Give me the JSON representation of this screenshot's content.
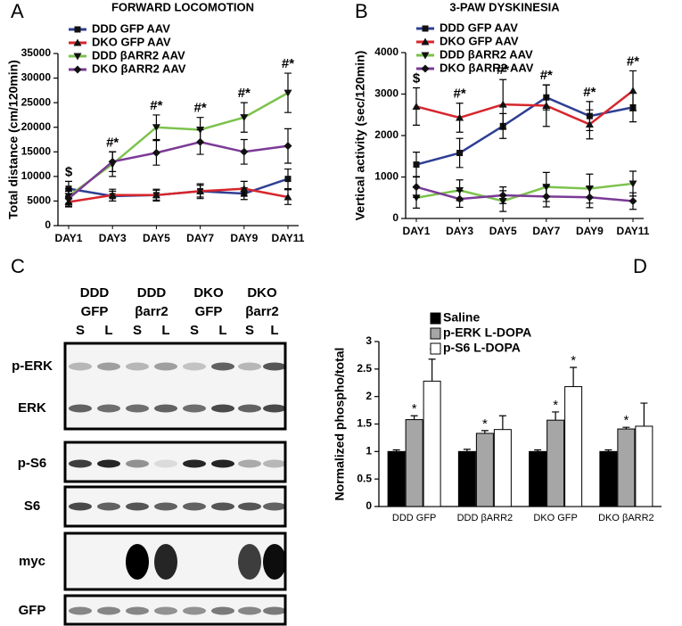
{
  "chart_data": [
    {
      "type": "line",
      "panel_label": "A",
      "title": "FORWARD LOCOMOTION",
      "y_label": "Total distance (cm/120min)",
      "categories": [
        "DAY1",
        "DAY3",
        "DAY5",
        "DAY7",
        "DAY9",
        "DAY11"
      ],
      "ylim": [
        0,
        35000
      ],
      "yticks": [
        0,
        5000,
        10000,
        15000,
        20000,
        25000,
        30000,
        35000
      ],
      "annotations": [
        "$",
        "#*",
        "#*",
        "#*",
        "#*",
        "#*"
      ],
      "series": [
        {
          "name": "DDD GFP AAV",
          "color": "#2e3f93",
          "marker": "square",
          "values": [
            7500,
            6000,
            6200,
            7000,
            6500,
            9500
          ],
          "errors": [
            1500,
            1000,
            1000,
            1200,
            1200,
            2000
          ]
        },
        {
          "name": "DKO GFP AAV",
          "color": "#d7262d",
          "marker": "triangle",
          "values": [
            4800,
            6200,
            6200,
            7000,
            7500,
            5800
          ],
          "errors": [
            1000,
            1200,
            1200,
            1500,
            1500,
            1500
          ]
        },
        {
          "name": "DDD βARR2 AAV",
          "color": "#7cc24d",
          "marker": "triangle-down",
          "values": [
            6000,
            12500,
            20000,
            19500,
            22000,
            27000
          ],
          "errors": [
            1500,
            2500,
            2500,
            2500,
            3000,
            4000
          ]
        },
        {
          "name": "DKO βARR2 AAV",
          "color": "#7b3a96",
          "marker": "diamond",
          "values": [
            5500,
            13000,
            14800,
            17000,
            15000,
            16200
          ],
          "errors": [
            1500,
            2000,
            2500,
            2500,
            2500,
            3500
          ]
        }
      ]
    },
    {
      "type": "line",
      "panel_label": "B",
      "title": "3-PAW DYSKINESIA",
      "y_label": "Vertical activity (sec/120min)",
      "categories": [
        "DAY1",
        "DAY3",
        "DAY5",
        "DAY7",
        "DAY9",
        "DAY11"
      ],
      "ylim": [
        0,
        4000
      ],
      "yticks": [
        0,
        1000,
        2000,
        3000,
        4000
      ],
      "annotations": [
        "$",
        "#*",
        "#*",
        "#*",
        "#*",
        "#*"
      ],
      "series": [
        {
          "name": "DDD GFP AAV",
          "color": "#2e3f93",
          "marker": "square",
          "values": [
            1300,
            1580,
            2230,
            2920,
            2470,
            2680
          ],
          "errors": [
            300,
            350,
            300,
            300,
            350,
            350
          ]
        },
        {
          "name": "DKO GFP AAV",
          "color": "#d7262d",
          "marker": "triangle",
          "values": [
            2700,
            2430,
            2750,
            2720,
            2270,
            3080
          ],
          "errors": [
            450,
            350,
            600,
            500,
            350,
            480
          ]
        },
        {
          "name": "DDD βARR2 AAV",
          "color": "#7cc24d",
          "marker": "triangle-down",
          "values": [
            500,
            680,
            420,
            760,
            720,
            840
          ],
          "errors": [
            250,
            250,
            250,
            350,
            350,
            300
          ]
        },
        {
          "name": "DKO βARR2 AAV",
          "color": "#7b3a96",
          "marker": "diamond",
          "values": [
            760,
            470,
            560,
            530,
            510,
            420
          ],
          "errors": [
            250,
            200,
            200,
            250,
            250,
            200
          ]
        }
      ]
    },
    {
      "type": "bar",
      "panel_label": "D",
      "y_label": "Normalized phospho/total",
      "categories": [
        "DDD GFP",
        "DDD βARR2",
        "DKO GFP",
        "DKO βARR2"
      ],
      "ylim": [
        0,
        3
      ],
      "yticks": [
        0,
        0.5,
        1,
        1.5,
        2,
        2.5,
        3
      ],
      "series": [
        {
          "name": "Saline",
          "color": "#000000",
          "values": [
            1,
            1,
            1,
            1
          ],
          "errors": [
            0.03,
            0.04,
            0.03,
            0.03
          ],
          "annotations": [
            null,
            null,
            null,
            null
          ]
        },
        {
          "name": "p-ERK L-DOPA",
          "color": "#a6a6a6",
          "values": [
            1.58,
            1.33,
            1.57,
            1.41
          ],
          "errors": [
            0.07,
            0.05,
            0.15,
            0.03
          ],
          "annotations": [
            "*",
            "*",
            "*",
            "*"
          ]
        },
        {
          "name": "p-S6 L-DOPA",
          "color": "#ffffff",
          "values": [
            2.28,
            1.4,
            2.18,
            1.46
          ],
          "errors": [
            0.4,
            0.25,
            0.35,
            0.42
          ],
          "annotations": [
            "*",
            null,
            "*",
            null
          ]
        }
      ]
    }
  ],
  "blot": {
    "panel_label": "C",
    "groups": [
      {
        "line1": "DDD",
        "line2": "GFP"
      },
      {
        "line1": "DDD",
        "line2": "βarr2"
      },
      {
        "line1": "DKO",
        "line2": "GFP"
      },
      {
        "line1": "DKO",
        "line2": "βarr2"
      }
    ],
    "lanes": [
      "S",
      "L",
      "S",
      "L",
      "S",
      "L",
      "S",
      "L"
    ],
    "rows": [
      "p-ERK",
      "ERK",
      "p-S6",
      "S6",
      "myc",
      "GFP"
    ]
  }
}
